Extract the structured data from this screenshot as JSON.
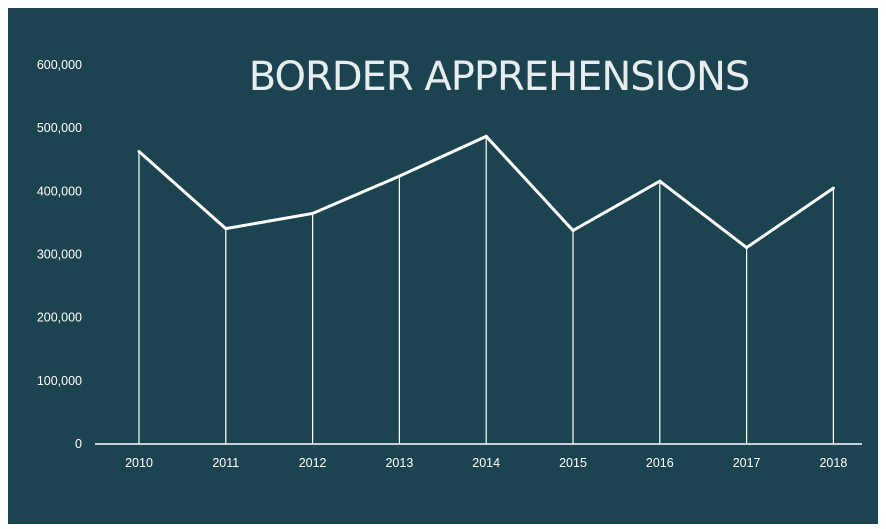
{
  "colors": {
    "background": "#1c4450",
    "line": "#ffffff",
    "text": "#ffffff",
    "title": "#e8eef0"
  },
  "chart_data": {
    "type": "line",
    "title": "BORDER APPREHENSIONS",
    "xlabel": "",
    "ylabel": "",
    "categories": [
      "2010",
      "2011",
      "2012",
      "2013",
      "2014",
      "2015",
      "2016",
      "2017",
      "2018"
    ],
    "series": [
      {
        "values": [
          463000,
          341000,
          365000,
          424000,
          487000,
          338000,
          416000,
          311000,
          405000
        ]
      }
    ],
    "ylim": [
      0,
      600000
    ],
    "yticks": [
      "0",
      "100,000",
      "200,000",
      "300,000",
      "400,000",
      "500,000",
      "600,000"
    ],
    "grid": false,
    "drop_lines": true,
    "legend": "none"
  }
}
